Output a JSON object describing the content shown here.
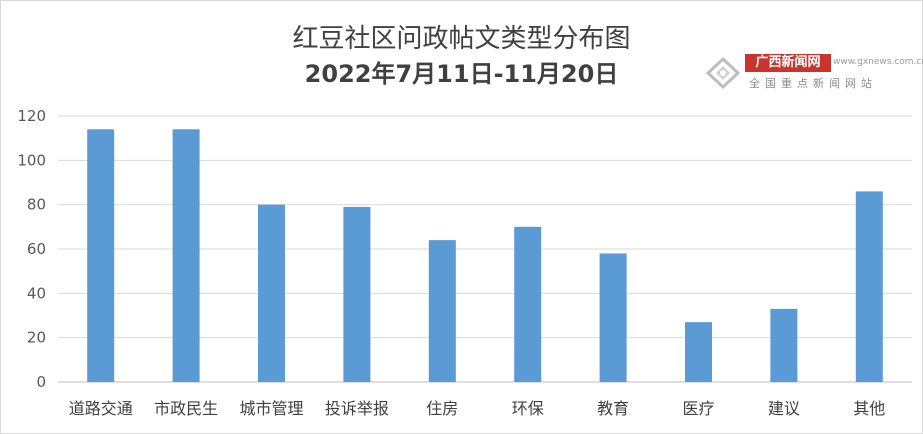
{
  "chart_data": {
    "type": "bar",
    "title": "红豆社区问政帖文类型分布图",
    "subtitle": "2022年7月11日-11月20日",
    "categories": [
      "道路交通",
      "市政民生",
      "城市管理",
      "投诉举报",
      "住房",
      "环保",
      "教育",
      "医疗",
      "建议",
      "其他"
    ],
    "values": [
      114,
      114,
      80,
      79,
      64,
      70,
      58,
      27,
      33,
      86
    ],
    "ylim": [
      0,
      120
    ],
    "yticks": [
      0,
      20,
      40,
      60,
      80,
      100,
      120
    ],
    "grid": true,
    "bar_color": "#5b9bd5",
    "xlabel": "",
    "ylabel": ""
  },
  "watermark": {
    "name": "广西新闻网",
    "url": "www.gxnews.com.cn",
    "subtitle": "全国重点新闻网站",
    "color": "#c9342e"
  }
}
